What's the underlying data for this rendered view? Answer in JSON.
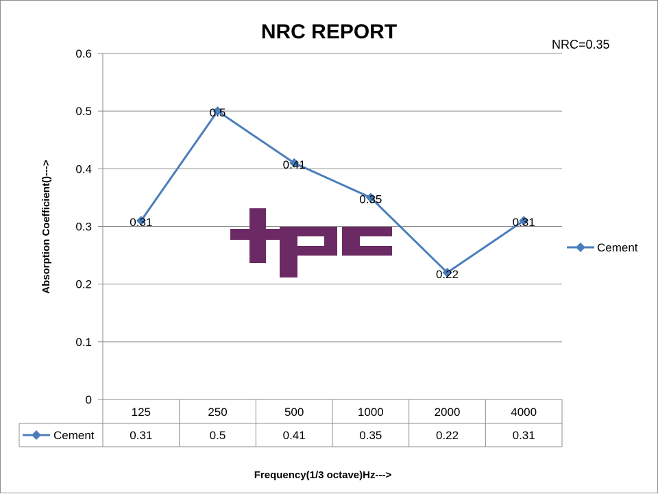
{
  "chart_data": {
    "type": "line",
    "title": "NRC REPORT",
    "annotation": "NRC=0.35",
    "xlabel": "Frequency(1/3 octave)Hz--->",
    "ylabel": "Absorption Coefficient()--->",
    "categories": [
      "125",
      "250",
      "500",
      "1000",
      "2000",
      "4000"
    ],
    "series": [
      {
        "name": "Cement",
        "values": [
          0.31,
          0.5,
          0.41,
          0.35,
          0.22,
          0.31
        ],
        "color": "#4a7ebb"
      }
    ],
    "ylim": [
      0,
      0.6
    ],
    "yticks": [
      0,
      0.1,
      0.2,
      0.3,
      0.4,
      0.5,
      0.6
    ],
    "ytick_labels": [
      "0",
      "0.1",
      "0.2",
      "0.3",
      "0.4",
      "0.5",
      "0.6"
    ],
    "data_labels": [
      "0.31",
      "0.5",
      "0.41",
      "0.35",
      "0.22",
      "0.31"
    ],
    "data_table": {
      "header": [
        "125",
        "250",
        "500",
        "1000",
        "2000",
        "4000"
      ],
      "row_label": "Cement",
      "row_values": [
        "0.31",
        "0.5",
        "0.41",
        "0.35",
        "0.22",
        "0.31"
      ]
    },
    "grid": true,
    "legend_position": "right",
    "marker": "diamond"
  },
  "watermark": {
    "text": "tpc",
    "color": "#6b2a63"
  }
}
